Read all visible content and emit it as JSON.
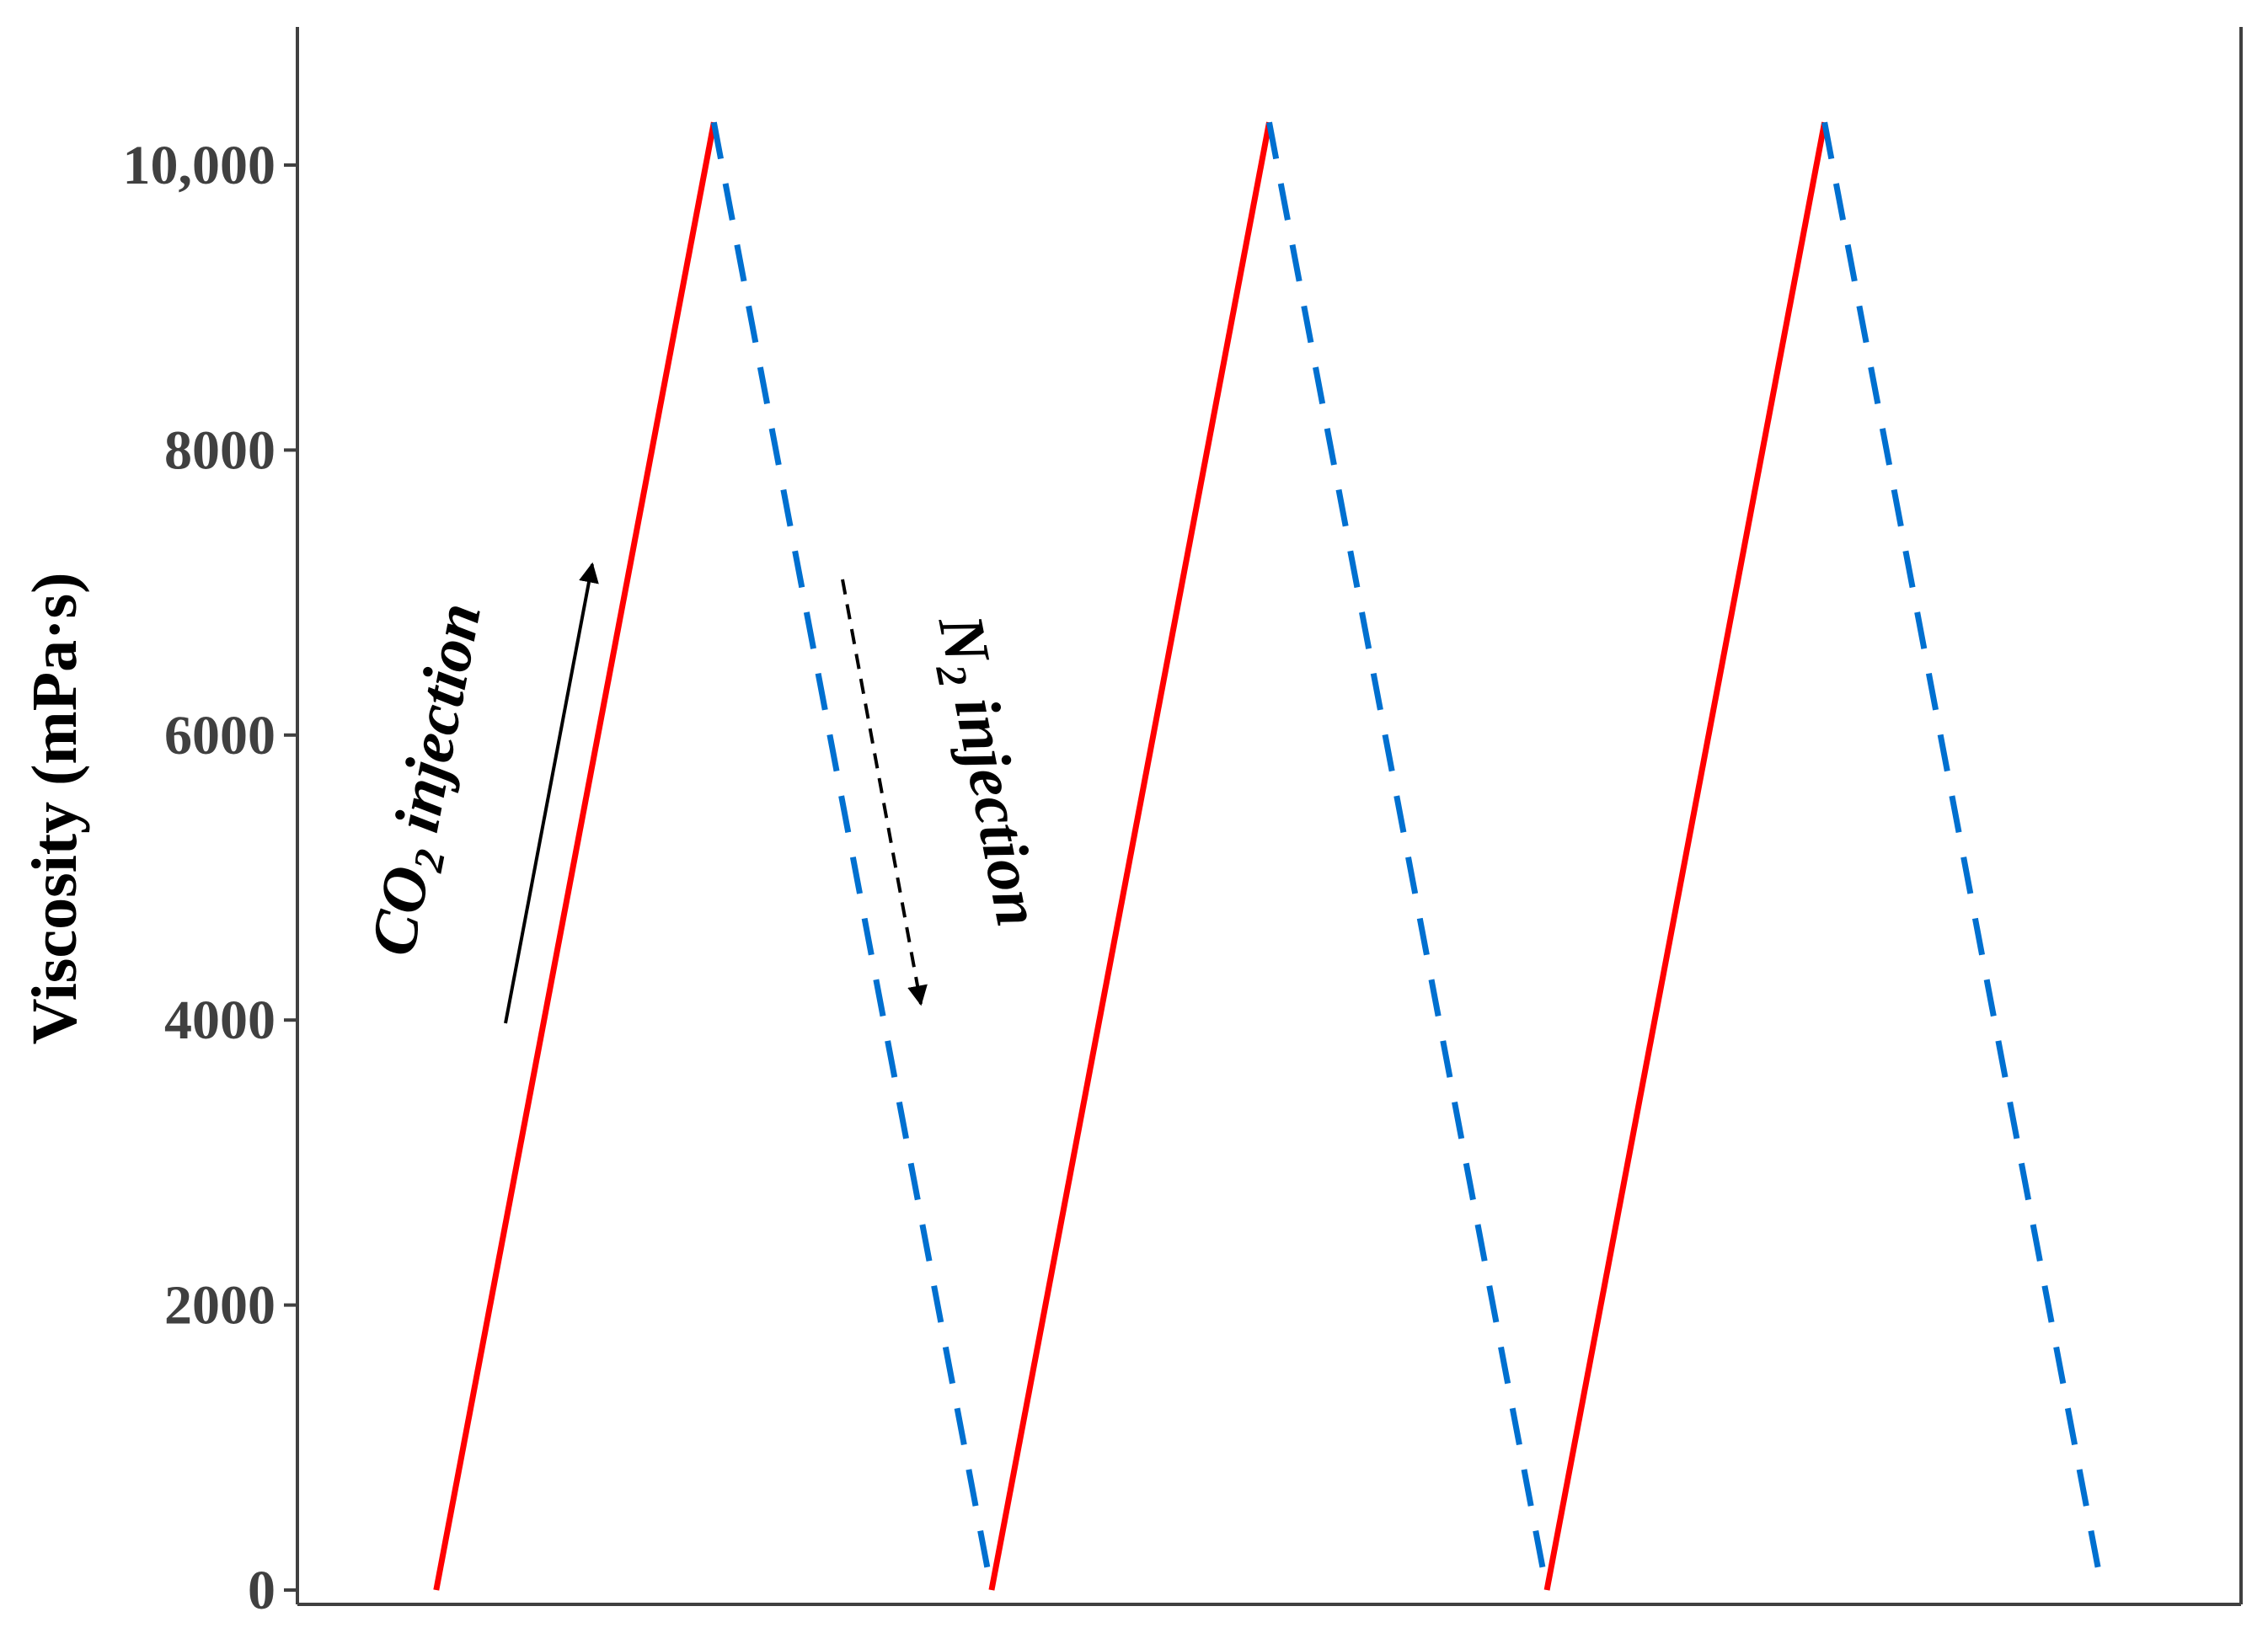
{
  "chart_data": {
    "type": "line",
    "title": "",
    "xlabel": "",
    "ylabel": "Viscosity (mPa·s)",
    "ylim": [
      -100,
      11000
    ],
    "xlim": [
      0,
      7
    ],
    "yticks": [
      0,
      2000,
      4000,
      6000,
      8000,
      10000
    ],
    "ytick_labels": [
      "0",
      "2000",
      "4000",
      "6000",
      "8000",
      "10,000"
    ],
    "grid": false,
    "legend": "none",
    "series": [
      {
        "style": "solid",
        "color": "#ff0000",
        "segments": [
          {
            "x": [
              0.5,
              1.5
            ],
            "y": [
              0,
              10300
            ]
          },
          {
            "x": [
              2.5,
              3.5
            ],
            "y": [
              0,
              10300
            ]
          },
          {
            "x": [
              4.5,
              5.5
            ],
            "y": [
              0,
              10300
            ]
          }
        ]
      },
      {
        "style": "dashed",
        "color": "#0070d0",
        "segments": [
          {
            "x": [
              1.5,
              2.5
            ],
            "y": [
              10300,
              0
            ]
          },
          {
            "x": [
              3.5,
              4.5
            ],
            "y": [
              10300,
              0
            ]
          },
          {
            "x": [
              5.5,
              6.5
            ],
            "y": [
              10300,
              0
            ]
          }
        ]
      }
    ],
    "annotations": [
      {
        "text": "CO",
        "sub": "2",
        "suffix": " injection",
        "arrow": "up",
        "arrow_style": "solid"
      },
      {
        "text": "N",
        "sub": "2",
        "suffix": " injection",
        "arrow": "down",
        "arrow_style": "dashed"
      }
    ]
  }
}
